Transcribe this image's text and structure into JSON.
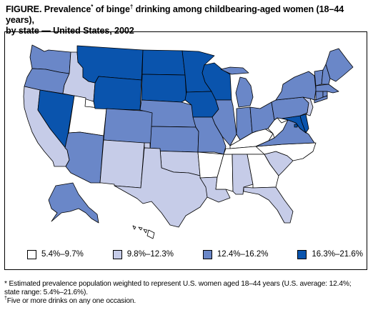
{
  "title": {
    "line1_a": "FIGURE.  Prevalence",
    "line1_sup1": "*",
    "line1_b": " of binge",
    "line1_sup2": "†",
    "line1_c": " drinking among childbearing-aged women (18–44 years),",
    "line2": "by state — United States, 2002"
  },
  "colors": {
    "class1": "#ffffff",
    "class2": "#c6cce8",
    "class3": "#6a87c8",
    "class4": "#0a54ad",
    "border": "#000000"
  },
  "legend": [
    {
      "label": "5.4%–9.7%",
      "color": "#ffffff"
    },
    {
      "label": "9.8%–12.3%",
      "color": "#c6cce8"
    },
    {
      "label": "12.4%–16.2%",
      "color": "#6a87c8"
    },
    {
      "label": "16.3%–21.6%",
      "color": "#0a54ad"
    }
  ],
  "footnotes": {
    "star_mark": "*",
    "star_line1": " Estimated prevalence population weighted to represent U.S. women aged 18–44 years (U.S. average: 12.4%;",
    "star_line2": "state range: 5.4%–21.6%).",
    "dagger_mark": "†",
    "dagger_text": "Five or more drinks on any one occasion."
  },
  "states": [
    {
      "code": "WA",
      "name": "Washington",
      "class": 3
    },
    {
      "code": "OR",
      "name": "Oregon",
      "class": 3
    },
    {
      "code": "CA",
      "name": "California",
      "class": 2
    },
    {
      "code": "NV",
      "name": "Nevada",
      "class": 4
    },
    {
      "code": "ID",
      "name": "Idaho",
      "class": 2
    },
    {
      "code": "UT",
      "name": "Utah",
      "class": 1
    },
    {
      "code": "AZ",
      "name": "Arizona",
      "class": 3
    },
    {
      "code": "MT",
      "name": "Montana",
      "class": 4
    },
    {
      "code": "WY",
      "name": "Wyoming",
      "class": 4
    },
    {
      "code": "CO",
      "name": "Colorado",
      "class": 3
    },
    {
      "code": "NM",
      "name": "New Mexico",
      "class": 2
    },
    {
      "code": "ND",
      "name": "North Dakota",
      "class": 4
    },
    {
      "code": "SD",
      "name": "South Dakota",
      "class": 4
    },
    {
      "code": "NE",
      "name": "Nebraska",
      "class": 3
    },
    {
      "code": "KS",
      "name": "Kansas",
      "class": 3
    },
    {
      "code": "OK",
      "name": "Oklahoma",
      "class": 2
    },
    {
      "code": "TX",
      "name": "Texas",
      "class": 2
    },
    {
      "code": "MN",
      "name": "Minnesota",
      "class": 4
    },
    {
      "code": "IA",
      "name": "Iowa",
      "class": 4
    },
    {
      "code": "MO",
      "name": "Missouri",
      "class": 3
    },
    {
      "code": "AR",
      "name": "Arkansas",
      "class": 1
    },
    {
      "code": "LA",
      "name": "Louisiana",
      "class": 2
    },
    {
      "code": "WI",
      "name": "Wisconsin",
      "class": 4
    },
    {
      "code": "IL",
      "name": "Illinois",
      "class": 3
    },
    {
      "code": "MS",
      "name": "Mississippi",
      "class": 1
    },
    {
      "code": "MI",
      "name": "Michigan",
      "class": 3
    },
    {
      "code": "IN",
      "name": "Indiana",
      "class": 3
    },
    {
      "code": "KY",
      "name": "Kentucky",
      "class": 1
    },
    {
      "code": "TN",
      "name": "Tennessee",
      "class": 1
    },
    {
      "code": "AL",
      "name": "Alabama",
      "class": 2
    },
    {
      "code": "OH",
      "name": "Ohio",
      "class": 3
    },
    {
      "code": "WV",
      "name": "West Virginia",
      "class": 1
    },
    {
      "code": "GA",
      "name": "Georgia",
      "class": 1
    },
    {
      "code": "FL",
      "name": "Florida",
      "class": 2
    },
    {
      "code": "SC",
      "name": "South Carolina",
      "class": 2
    },
    {
      "code": "NC",
      "name": "North Carolina",
      "class": 1
    },
    {
      "code": "VA",
      "name": "Virginia",
      "class": 3
    },
    {
      "code": "PA",
      "name": "Pennsylvania",
      "class": 3
    },
    {
      "code": "NY",
      "name": "New York",
      "class": 3
    },
    {
      "code": "MD",
      "name": "Maryland",
      "class": 4
    },
    {
      "code": "DE",
      "name": "Delaware",
      "class": 4
    },
    {
      "code": "DC",
      "name": "District of Columbia",
      "class": 4
    },
    {
      "code": "NJ",
      "name": "New Jersey",
      "class": 2
    },
    {
      "code": "CT",
      "name": "Connecticut",
      "class": 3
    },
    {
      "code": "RI",
      "name": "Rhode Island",
      "class": 3
    },
    {
      "code": "MA",
      "name": "Massachusetts",
      "class": 3
    },
    {
      "code": "VT",
      "name": "Vermont",
      "class": 3
    },
    {
      "code": "NH",
      "name": "New Hampshire",
      "class": 3
    },
    {
      "code": "ME",
      "name": "Maine",
      "class": 3
    },
    {
      "code": "AK",
      "name": "Alaska",
      "class": 3
    },
    {
      "code": "HI",
      "name": "Hawaii",
      "class": 1
    }
  ]
}
